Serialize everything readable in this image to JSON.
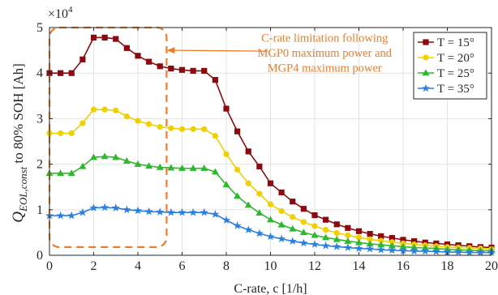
{
  "chart_data": {
    "type": "line",
    "xlabel": "C-rate,  c [1/h]",
    "ylabel_main": "Q",
    "ylabel_sub": "EOL,const",
    "ylabel_rest": " to 80% SOH [Ah]",
    "multiplier": "×10",
    "multiplier_exp": "4",
    "xlim": [
      0,
      20
    ],
    "ylim": [
      0,
      5
    ],
    "xticks": [
      0,
      2,
      4,
      6,
      8,
      10,
      12,
      14,
      16,
      18,
      20
    ],
    "yticks": [
      0,
      1,
      2,
      3,
      4,
      5
    ],
    "grid": true,
    "legend_position": "top-right",
    "annotation": {
      "lines": [
        "C-rate limitation following",
        "MGP0 maximum power and",
        "MGP4 maximum power"
      ],
      "box_x": [
        0.0,
        5.3
      ],
      "box_y": [
        0.18,
        5.0
      ],
      "arrow_to": [
        5.3,
        4.5
      ]
    },
    "x": [
      0,
      0.5,
      1,
      1.5,
      2,
      2.5,
      3,
      3.5,
      4,
      4.5,
      5,
      5.5,
      6,
      6.5,
      7,
      7.5,
      8,
      8.5,
      9,
      9.5,
      10,
      10.5,
      11,
      11.5,
      12,
      12.5,
      13,
      13.5,
      14,
      14.5,
      15,
      15.5,
      16,
      16.5,
      17,
      17.5,
      18,
      18.5,
      19,
      19.5,
      20
    ],
    "series": [
      {
        "name": "T = 15°",
        "color": "#8b0a10",
        "marker": "square",
        "values": [
          4.0,
          4.0,
          4.0,
          4.3,
          4.78,
          4.78,
          4.75,
          4.55,
          4.38,
          4.25,
          4.15,
          4.1,
          4.07,
          4.05,
          4.05,
          3.85,
          3.22,
          2.72,
          2.28,
          1.95,
          1.58,
          1.38,
          1.18,
          1.02,
          0.88,
          0.78,
          0.68,
          0.6,
          0.53,
          0.47,
          0.42,
          0.38,
          0.34,
          0.31,
          0.28,
          0.26,
          0.24,
          0.22,
          0.2,
          0.18,
          0.17
        ]
      },
      {
        "name": "T = 20°",
        "color": "#f0d000",
        "marker": "circle",
        "values": [
          2.68,
          2.68,
          2.68,
          2.9,
          3.2,
          3.2,
          3.18,
          3.05,
          2.95,
          2.88,
          2.82,
          2.79,
          2.77,
          2.77,
          2.77,
          2.62,
          2.22,
          1.88,
          1.58,
          1.35,
          1.12,
          0.97,
          0.84,
          0.73,
          0.64,
          0.56,
          0.49,
          0.44,
          0.39,
          0.35,
          0.32,
          0.29,
          0.26,
          0.24,
          0.22,
          0.2,
          0.18,
          0.17,
          0.16,
          0.15,
          0.14
        ]
      },
      {
        "name": "T = 25°",
        "color": "#2eb82e",
        "marker": "triangle",
        "values": [
          1.8,
          1.8,
          1.8,
          1.95,
          2.15,
          2.17,
          2.15,
          2.07,
          2.0,
          1.96,
          1.93,
          1.92,
          1.91,
          1.91,
          1.91,
          1.83,
          1.55,
          1.3,
          1.1,
          0.93,
          0.78,
          0.67,
          0.58,
          0.5,
          0.44,
          0.39,
          0.35,
          0.31,
          0.28,
          0.25,
          0.23,
          0.21,
          0.19,
          0.17,
          0.16,
          0.15,
          0.13,
          0.12,
          0.11,
          0.1,
          0.1
        ]
      },
      {
        "name": "T = 35°",
        "color": "#2a7fe0",
        "marker": "star",
        "values": [
          0.87,
          0.87,
          0.87,
          0.94,
          1.04,
          1.05,
          1.04,
          1.0,
          0.98,
          0.96,
          0.95,
          0.94,
          0.94,
          0.94,
          0.94,
          0.9,
          0.77,
          0.65,
          0.56,
          0.48,
          0.41,
          0.36,
          0.31,
          0.27,
          0.24,
          0.21,
          0.19,
          0.17,
          0.15,
          0.14,
          0.12,
          0.11,
          0.1,
          0.09,
          0.09,
          0.08,
          0.07,
          0.07,
          0.06,
          0.06,
          0.06
        ]
      }
    ]
  }
}
